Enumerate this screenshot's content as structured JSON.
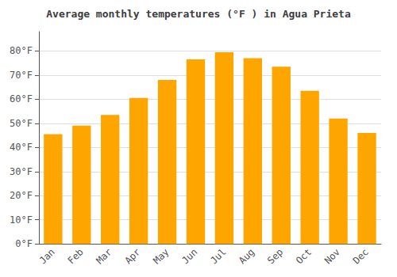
{
  "chart_data": {
    "type": "bar",
    "title": "Average monthly temperatures (°F ) in Agua Prieta",
    "categories": [
      "Jan",
      "Feb",
      "Mar",
      "Apr",
      "May",
      "Jun",
      "Jul",
      "Aug",
      "Sep",
      "Oct",
      "Nov",
      "Dec"
    ],
    "values": [
      45.5,
      49.0,
      53.5,
      60.5,
      68.0,
      76.5,
      79.5,
      77.0,
      73.5,
      63.5,
      52.0,
      46.0
    ],
    "color": "#FFA500",
    "ylim": [
      0,
      88
    ],
    "yticks": [
      {
        "value": 0,
        "label": "0°F"
      },
      {
        "value": 10,
        "label": "10°F"
      },
      {
        "value": 20,
        "label": "20°F"
      },
      {
        "value": 30,
        "label": "30°F"
      },
      {
        "value": 40,
        "label": "40°F"
      },
      {
        "value": 50,
        "label": "50°F"
      },
      {
        "value": 60,
        "label": "60°F"
      },
      {
        "value": 70,
        "label": "70°F"
      },
      {
        "value": 80,
        "label": "80°F"
      }
    ],
    "grid": true
  }
}
